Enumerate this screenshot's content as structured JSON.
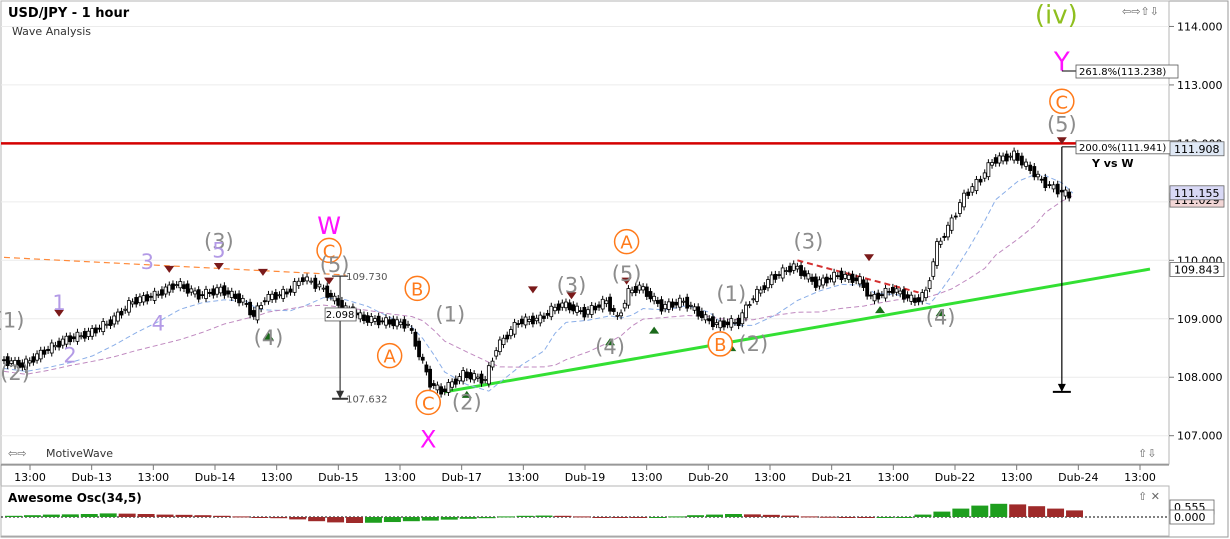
{
  "header": {
    "title": "USD/JPY - 1 hour",
    "subtitle": "Wave Analysis"
  },
  "footer": {
    "brand": "MotiveWave"
  },
  "oscillator": {
    "title": "Awesome Osc(34,5)",
    "value_label": "0.555",
    "zero_label": "0.000",
    "colors": {
      "up": "#1e9e1e",
      "down": "#9e2a2a"
    }
  },
  "colors": {
    "resistance": "#d40000",
    "support_trend": "#33e033",
    "wave_magenta": "#ff10ff",
    "wave_orange": "#ff7a1a",
    "wave_gray": "#8c8c8c",
    "wave_lavender": "#b39ae6",
    "wave_olive": "#8fbf1f",
    "ma_fast": "#8aaee8",
    "ma_slow": "#c08ac0"
  },
  "chart_data": {
    "type": "candlestick",
    "symbol": "USD/JPY",
    "timeframe": "1 hour",
    "ylim": [
      106.55,
      114.35
    ],
    "y_ticks": [
      107.0,
      108.0,
      109.0,
      110.0,
      111.0,
      112.0,
      113.0,
      114.0
    ],
    "y_tick_labels": [
      "107.000",
      "108.000",
      "109.000",
      "110.000",
      "111.000",
      "112.000",
      "113.000",
      "114.000"
    ],
    "x_tick_labels": [
      "13:00",
      "Dub-13",
      "13:00",
      "Dub-14",
      "13:00",
      "Dub-15",
      "13:00",
      "Dub-17",
      "13:00",
      "Dub-19",
      "13:00",
      "Dub-20",
      "13:00",
      "Dub-21",
      "13:00",
      "Dub-22",
      "13:00",
      "Dub-24",
      "13:00"
    ],
    "price_path": [
      [
        0,
        108.3
      ],
      [
        4,
        108.2
      ],
      [
        8,
        108.45
      ],
      [
        12,
        108.65
      ],
      [
        16,
        108.75
      ],
      [
        20,
        108.95
      ],
      [
        24,
        109.3
      ],
      [
        28,
        109.4
      ],
      [
        32,
        109.6
      ],
      [
        36,
        109.4
      ],
      [
        40,
        109.5
      ],
      [
        44,
        109.3
      ],
      [
        46,
        109.05
      ],
      [
        48,
        109.35
      ],
      [
        52,
        109.45
      ],
      [
        55,
        109.7
      ],
      [
        58,
        109.55
      ],
      [
        62,
        109.2
      ],
      [
        66,
        109.0
      ],
      [
        70,
        108.95
      ],
      [
        74,
        108.9
      ],
      [
        76,
        108.4
      ],
      [
        78,
        107.9
      ],
      [
        80,
        107.75
      ],
      [
        84,
        108.05
      ],
      [
        88,
        107.95
      ],
      [
        90,
        108.5
      ],
      [
        94,
        108.95
      ],
      [
        98,
        109.0
      ],
      [
        100,
        109.15
      ],
      [
        102,
        109.25
      ],
      [
        106,
        109.1
      ],
      [
        110,
        109.3
      ],
      [
        112,
        109.0
      ],
      [
        114,
        109.45
      ],
      [
        116,
        109.55
      ],
      [
        120,
        109.2
      ],
      [
        124,
        109.3
      ],
      [
        128,
        109.0
      ],
      [
        130,
        108.9
      ],
      [
        134,
        108.95
      ],
      [
        136,
        109.3
      ],
      [
        140,
        109.7
      ],
      [
        144,
        109.9
      ],
      [
        148,
        109.6
      ],
      [
        152,
        109.75
      ],
      [
        156,
        109.65
      ],
      [
        158,
        109.35
      ],
      [
        162,
        109.5
      ],
      [
        166,
        109.3
      ],
      [
        168,
        109.45
      ],
      [
        170,
        110.25
      ],
      [
        172,
        110.55
      ],
      [
        175,
        111.1
      ],
      [
        178,
        111.4
      ],
      [
        180,
        111.7
      ],
      [
        184,
        111.8
      ],
      [
        187,
        111.55
      ],
      [
        189,
        111.35
      ],
      [
        192,
        111.2
      ],
      [
        194,
        111.1
      ]
    ],
    "x_range": [
      0,
      208
    ],
    "levels": {
      "resistance": 112.0,
      "fib_200": 111.941,
      "fib_200_label": "200.0%(111.941)",
      "fib_2618": 113.238,
      "fib_2618_label": "261.8%(113.238)",
      "measure_top": 109.73,
      "measure_top_label": "109.730",
      "measure_bottom": 107.632,
      "measure_bottom_label": "107.632",
      "measure_diff_label": "2.098",
      "current_price_label": "111.155",
      "ask_label": "111.029",
      "high_label": "111.908",
      "trend_label": "109.843",
      "target_bottom": 107.75
    },
    "trendline_support": [
      [
        80,
        107.75
      ],
      [
        208,
        109.85
      ]
    ],
    "trendline_orange": [
      [
        0,
        110.05
      ],
      [
        62,
        109.75
      ]
    ],
    "trendline_red_dashed": [
      [
        144,
        110.0
      ],
      [
        166,
        109.45
      ]
    ],
    "annotations": [
      {
        "text": "(iv)",
        "x": 191,
        "y": 114.05,
        "color": "olive",
        "size": 26
      },
      {
        "text": "Y",
        "x": 192,
        "y": 113.25,
        "color": "magenta",
        "size": 26
      },
      {
        "text": "W",
        "x": 59,
        "y": 110.45,
        "color": "magenta",
        "size": 24
      },
      {
        "text": "X",
        "x": 77,
        "y": 106.8,
        "color": "magenta",
        "size": 24
      },
      {
        "text": "C",
        "x": 192,
        "y": 112.6,
        "color": "orange",
        "circled": true
      },
      {
        "text": "C",
        "x": 59,
        "y": 110.05,
        "color": "orange",
        "circled": true
      },
      {
        "text": "C",
        "x": 77,
        "y": 107.45,
        "color": "orange",
        "circled": true
      },
      {
        "text": "A",
        "x": 113,
        "y": 110.2,
        "color": "orange",
        "circled": true
      },
      {
        "text": "B",
        "x": 75,
        "y": 109.4,
        "color": "orange",
        "circled": true
      },
      {
        "text": "A",
        "x": 70,
        "y": 108.25,
        "color": "orange",
        "circled": true
      },
      {
        "text": "B",
        "x": 130,
        "y": 108.45,
        "color": "orange",
        "circled": true
      },
      {
        "text": "(5)",
        "x": 192,
        "y": 112.2,
        "color": "gray"
      },
      {
        "text": "(3)",
        "x": 39,
        "y": 110.2,
        "color": "gray"
      },
      {
        "text": "(5)",
        "x": 60,
        "y": 109.8,
        "color": "gray"
      },
      {
        "text": "(4)",
        "x": 48,
        "y": 108.55,
        "color": "gray"
      },
      {
        "text": "(1)",
        "x": 81,
        "y": 108.95,
        "color": "gray"
      },
      {
        "text": "(2)",
        "x": 84,
        "y": 107.45,
        "color": "gray"
      },
      {
        "text": "(3)",
        "x": 103,
        "y": 109.45,
        "color": "gray"
      },
      {
        "text": "(5)",
        "x": 113,
        "y": 109.65,
        "color": "gray"
      },
      {
        "text": "(4)",
        "x": 110,
        "y": 108.4,
        "color": "gray"
      },
      {
        "text": "(1)",
        "x": 132,
        "y": 109.3,
        "color": "gray"
      },
      {
        "text": "(2)",
        "x": 136,
        "y": 108.45,
        "color": "gray"
      },
      {
        "text": "(3)",
        "x": 146,
        "y": 110.2,
        "color": "gray"
      },
      {
        "text": "(4)",
        "x": 170,
        "y": 108.9,
        "color": "gray"
      },
      {
        "text": "(1)",
        "x": 1,
        "y": 108.85,
        "color": "gray"
      },
      {
        "text": "(2)",
        "x": 2,
        "y": 107.95,
        "color": "gray"
      },
      {
        "text": "1",
        "x": 10,
        "y": 109.15,
        "color": "lavender"
      },
      {
        "text": "2",
        "x": 12,
        "y": 108.25,
        "color": "lavender"
      },
      {
        "text": "3",
        "x": 26,
        "y": 109.85,
        "color": "lavender"
      },
      {
        "text": "4",
        "x": 28,
        "y": 108.8,
        "color": "lavender"
      },
      {
        "text": "5",
        "x": 39,
        "y": 110.05,
        "color": "lavender"
      }
    ],
    "side_labels": [
      {
        "text": "Y vs W",
        "x": 205,
        "y": 111.6
      }
    ],
    "tops": [
      [
        10,
        109.0
      ],
      [
        30,
        109.75
      ],
      [
        39,
        109.8
      ],
      [
        47,
        109.7
      ],
      [
        59,
        109.55
      ],
      [
        96,
        109.4
      ],
      [
        103,
        109.3
      ],
      [
        113,
        109.55
      ],
      [
        157,
        109.95
      ],
      [
        192,
        111.95
      ]
    ],
    "bottoms": [
      [
        48,
        108.8
      ],
      [
        77,
        107.65
      ],
      [
        84,
        107.8
      ],
      [
        110,
        108.7
      ],
      [
        118,
        108.9
      ],
      [
        132,
        108.6
      ],
      [
        159,
        109.25
      ],
      [
        170,
        109.2
      ]
    ],
    "awesome_osc": [
      0.1,
      0.15,
      0.2,
      0.22,
      0.25,
      0.3,
      0.28,
      0.25,
      0.2,
      0.18,
      0.15,
      0.1,
      0.05,
      0.0,
      -0.1,
      -0.2,
      -0.35,
      -0.45,
      -0.5,
      -0.48,
      -0.42,
      -0.35,
      -0.3,
      -0.22,
      -0.15,
      -0.1,
      0.05,
      0.1,
      0.12,
      0.1,
      0.05,
      0.0,
      -0.05,
      -0.08,
      0.0,
      0.05,
      0.15,
      0.2,
      0.25,
      0.22,
      0.18,
      0.12,
      0.05,
      0.02,
      -0.05,
      -0.08,
      -0.05,
      0.0,
      0.2,
      0.45,
      0.7,
      0.95,
      1.1,
      1.05,
      0.9,
      0.7,
      0.55
    ]
  }
}
